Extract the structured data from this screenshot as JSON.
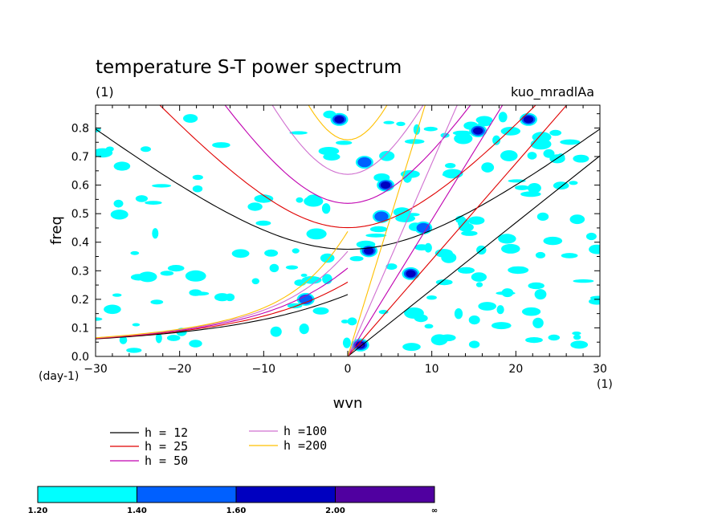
{
  "chart_data": {
    "type": "contour",
    "title": "temperature S-T power spectrum",
    "units_label": "(1)",
    "case_label": "kuo_mradlAa",
    "xlabel": "wvn",
    "ylabel": "freq",
    "x_unit": "(1)",
    "y_unit": "(day-1)",
    "xlim": [
      -30,
      30
    ],
    "ylim": [
      0,
      0.88
    ],
    "x_ticks": [
      "−30",
      "−20",
      "−10",
      "0",
      "10",
      "20",
      "30"
    ],
    "x_tick_values": [
      -30,
      -20,
      -10,
      0,
      10,
      20,
      30
    ],
    "y_ticks": [
      "0.0",
      "0.1",
      "0.2",
      "0.3",
      "0.4",
      "0.5",
      "0.6",
      "0.7",
      "0.8"
    ],
    "y_tick_values": [
      0,
      0.1,
      0.2,
      0.3,
      0.4,
      0.5,
      0.6,
      0.7,
      0.8
    ],
    "dispersion_curves": [
      {
        "name": "h = 12",
        "h": 12,
        "color": "#000000"
      },
      {
        "name": "h = 25",
        "h": 25,
        "color": "#e00000"
      },
      {
        "name": "h = 50",
        "h": 50,
        "color": "#c000b0"
      },
      {
        "name": "h =100",
        "h": 100,
        "color": "#d070d0"
      },
      {
        "name": "h =200",
        "h": 200,
        "color": "#ffc000"
      }
    ],
    "colorbar": {
      "levels": [
        "1.20",
        "1.40",
        "1.60",
        "2.00",
        "∞"
      ],
      "colors": [
        "#00ffff",
        "#0060ff",
        "#0000c0",
        "#5000a0"
      ]
    },
    "high_power_regions": [
      {
        "x": 1.5,
        "y": 0.04,
        "level": 3
      },
      {
        "x": 2.5,
        "y": 0.37,
        "level": 2
      },
      {
        "x": 7.5,
        "y": 0.29,
        "level": 2
      },
      {
        "x": 4.5,
        "y": 0.6,
        "level": 2
      },
      {
        "x": -5,
        "y": 0.2,
        "level": 1
      },
      {
        "x": -1,
        "y": 0.83,
        "level": 2
      },
      {
        "x": 2,
        "y": 0.68,
        "level": 1
      },
      {
        "x": 15.5,
        "y": 0.79,
        "level": 2
      },
      {
        "x": 21.5,
        "y": 0.83,
        "level": 2
      },
      {
        "x": 9,
        "y": 0.45,
        "level": 1
      },
      {
        "x": 4,
        "y": 0.49,
        "level": 1
      }
    ]
  }
}
